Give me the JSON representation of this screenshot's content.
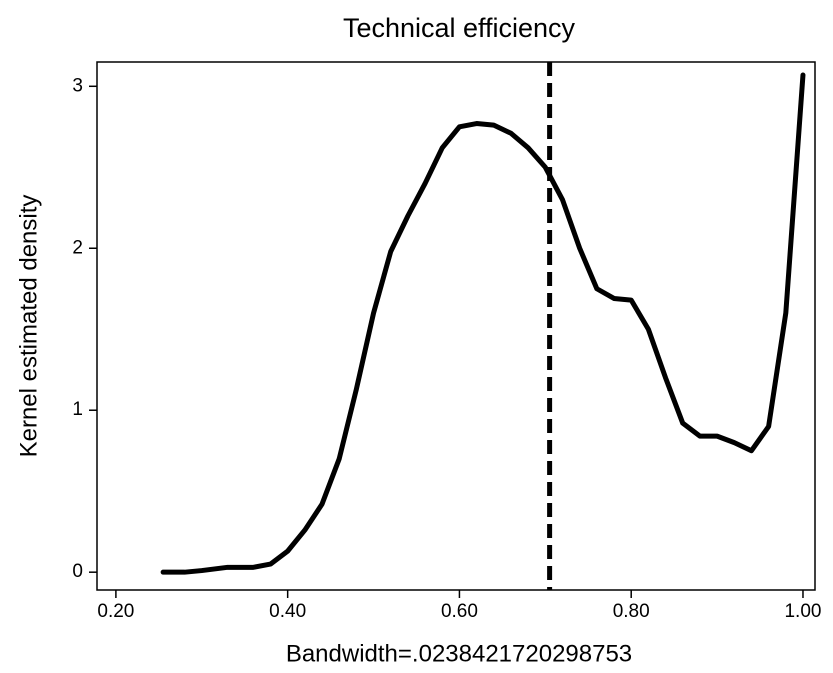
{
  "chart_data": {
    "type": "line",
    "title": "Technical efficiency",
    "x_label": "Bandwidth=.0238421720298753",
    "y_label": "Kernel estimated density",
    "x": [
      0.255,
      0.28,
      0.3,
      0.33,
      0.36,
      0.38,
      0.4,
      0.42,
      0.44,
      0.46,
      0.48,
      0.5,
      0.52,
      0.54,
      0.56,
      0.58,
      0.6,
      0.62,
      0.64,
      0.66,
      0.68,
      0.7,
      0.72,
      0.74,
      0.76,
      0.78,
      0.8,
      0.82,
      0.84,
      0.86,
      0.88,
      0.9,
      0.92,
      0.94,
      0.96,
      0.98,
      1.0
    ],
    "series": [
      {
        "color": "#000000",
        "values": [
          0,
          0,
          0.01,
          0.03,
          0.03,
          0.05,
          0.13,
          0.26,
          0.42,
          0.7,
          1.13,
          1.6,
          1.98,
          2.2,
          2.4,
          2.62,
          2.75,
          2.77,
          2.76,
          2.71,
          2.62,
          2.5,
          2.3,
          2.0,
          1.75,
          1.69,
          1.68,
          1.5,
          1.2,
          0.92,
          0.84,
          0.84,
          0.8,
          0.75,
          0.9,
          1.6,
          3.07
        ]
      }
    ],
    "vline": 0.705,
    "xlim": [
      0.178,
      1.014
    ],
    "ylim": [
      -0.11,
      3.15
    ],
    "xticks": [
      {
        "value": 0.2,
        "label": "0.20"
      },
      {
        "value": 0.4,
        "label": "0.40"
      },
      {
        "value": 0.6,
        "label": "0.60"
      },
      {
        "value": 0.8,
        "label": "0.80"
      },
      {
        "value": 1.0,
        "label": "1.00"
      }
    ],
    "yticks": [
      0,
      1,
      2,
      3
    ]
  }
}
